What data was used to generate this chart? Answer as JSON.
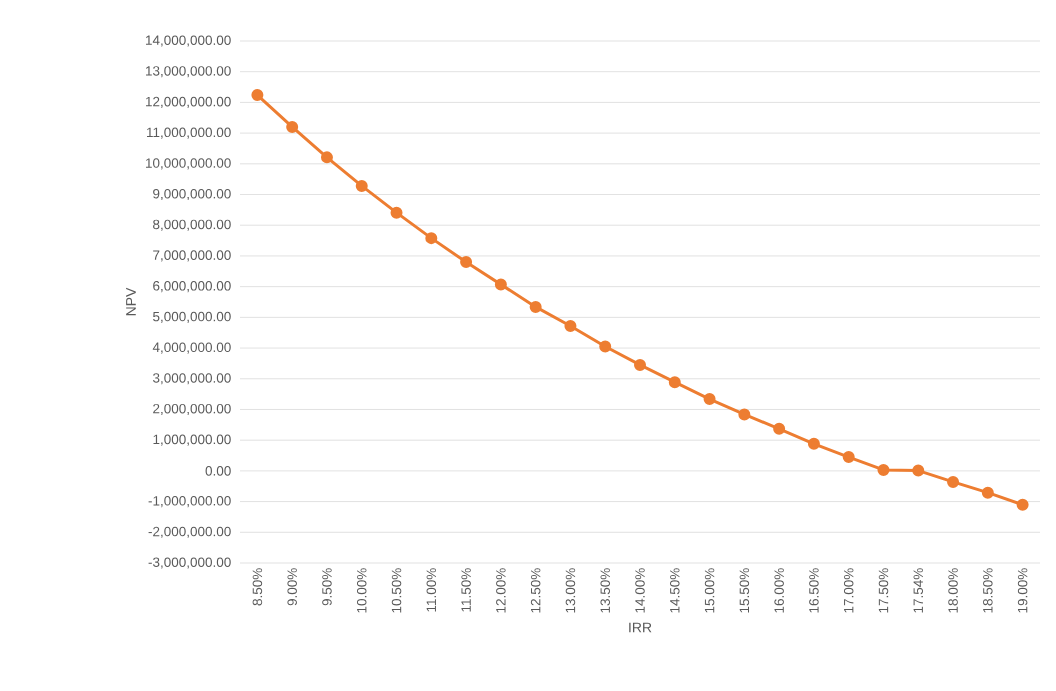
{
  "chart_data": {
    "type": "line",
    "xlabel": "IRR",
    "ylabel": "NPV",
    "categories": [
      "8.50%",
      "9.00%",
      "9.50%",
      "10.00%",
      "10.50%",
      "11.00%",
      "11.50%",
      "12.00%",
      "12.50%",
      "13.00%",
      "13.50%",
      "14.00%",
      "14.50%",
      "15.00%",
      "15.50%",
      "16.00%",
      "16.50%",
      "17.00%",
      "17.50%",
      "17.54%",
      "18.00%",
      "18.50%",
      "19.00%"
    ],
    "values": [
      12240000,
      11200000,
      10210000,
      9280000,
      8410000,
      7580000,
      6800000,
      6070000,
      5340000,
      4720000,
      4050000,
      3450000,
      2890000,
      2340000,
      1840000,
      1370000,
      880000,
      450000,
      30000,
      10000,
      -360000,
      -710000,
      -1100000
    ],
    "color": "#ed7d31",
    "marker": "circle",
    "line_style": "solid",
    "grid": "y",
    "ylim": [
      -3000000,
      14000000
    ],
    "yticks": [
      {
        "value": -3000000,
        "label": "-3,000,000.00"
      },
      {
        "value": -2000000,
        "label": "-2,000,000.00"
      },
      {
        "value": -1000000,
        "label": "-1,000,000.00"
      },
      {
        "value": 0,
        "label": "0.00"
      },
      {
        "value": 1000000,
        "label": "1,000,000.00"
      },
      {
        "value": 2000000,
        "label": "2,000,000.00"
      },
      {
        "value": 3000000,
        "label": "3,000,000.00"
      },
      {
        "value": 4000000,
        "label": "4,000,000.00"
      },
      {
        "value": 5000000,
        "label": "5,000,000.00"
      },
      {
        "value": 6000000,
        "label": "6,000,000.00"
      },
      {
        "value": 7000000,
        "label": "7,000,000.00"
      },
      {
        "value": 8000000,
        "label": "8,000,000.00"
      },
      {
        "value": 9000000,
        "label": "9,000,000.00"
      },
      {
        "value": 10000000,
        "label": "10,000,000.00"
      },
      {
        "value": 11000000,
        "label": "11,000,000.00"
      },
      {
        "value": 12000000,
        "label": "12,000,000.00"
      },
      {
        "value": 13000000,
        "label": "13,000,000.00"
      },
      {
        "value": 14000000,
        "label": "14,000,000.00"
      }
    ]
  }
}
